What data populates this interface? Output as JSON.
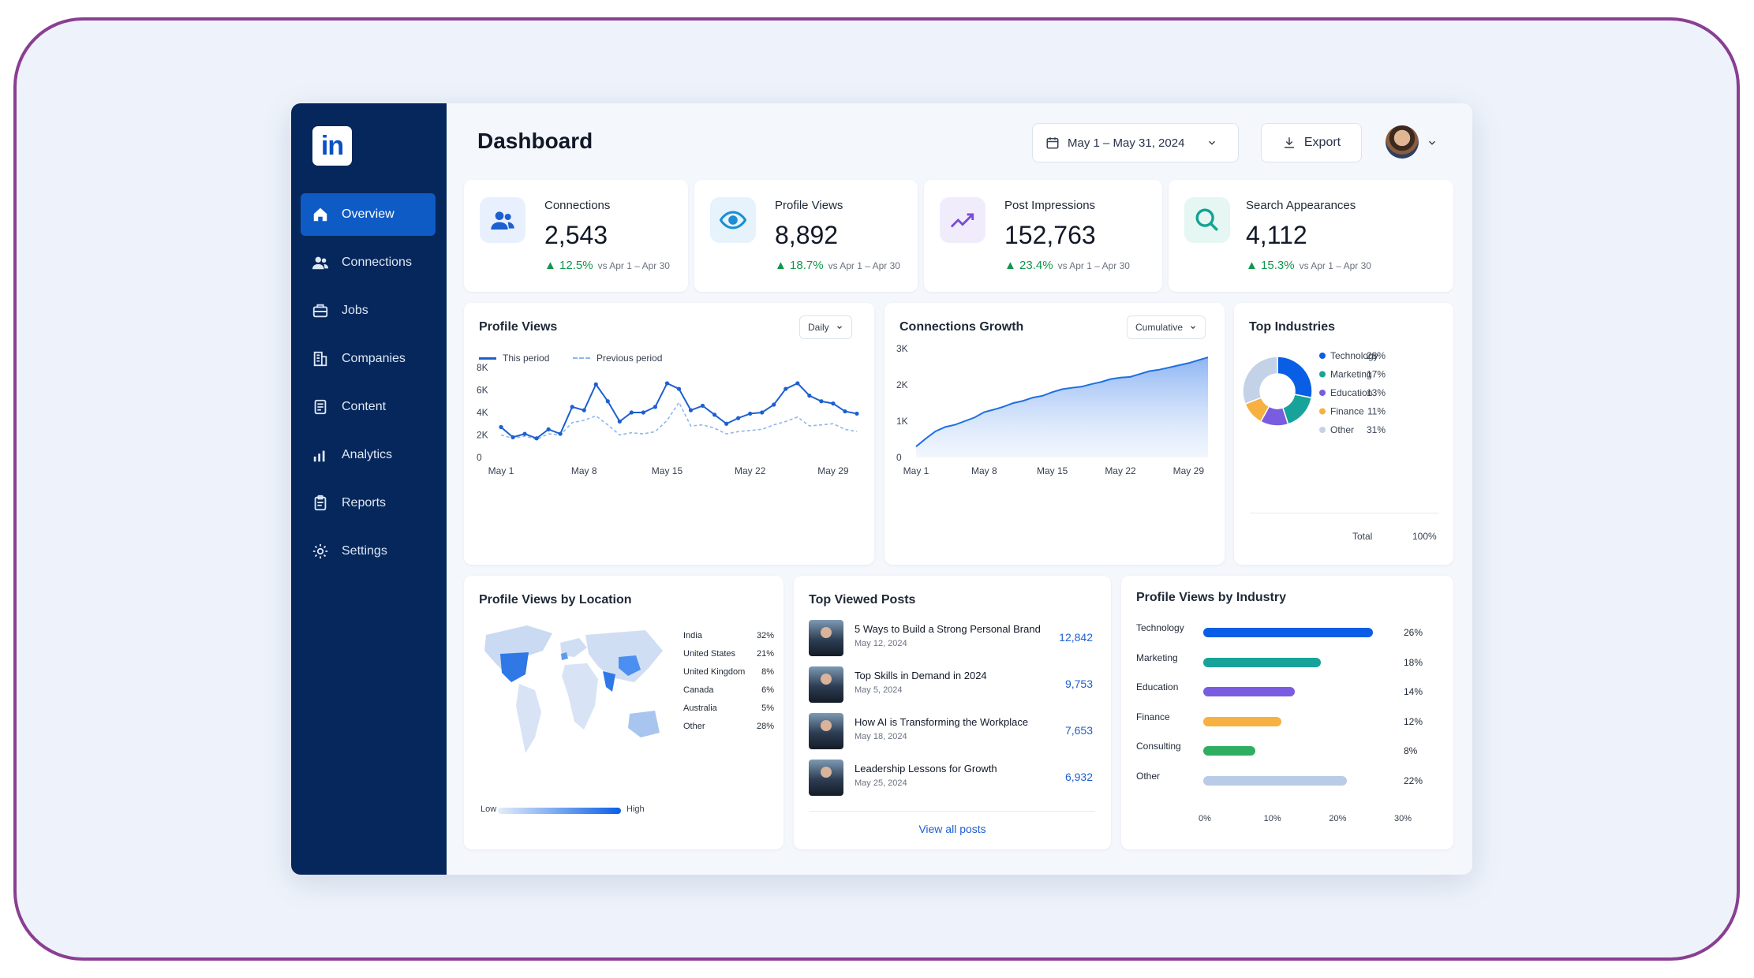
{
  "logo": "in",
  "sidebar": {
    "items": [
      {
        "label": "Overview",
        "icon": "home-icon",
        "active": true
      },
      {
        "label": "Connections",
        "icon": "users-icon"
      },
      {
        "label": "Jobs",
        "icon": "briefcase-icon"
      },
      {
        "label": "Companies",
        "icon": "building-icon"
      },
      {
        "label": "Content",
        "icon": "document-icon"
      },
      {
        "label": "Analytics",
        "icon": "bar-chart-icon"
      },
      {
        "label": "Reports",
        "icon": "clipboard-icon"
      },
      {
        "label": "Settings",
        "icon": "gear-icon"
      }
    ]
  },
  "header": {
    "title": "Dashboard",
    "date_range": "May 1 – May 31, 2024",
    "export_label": "Export"
  },
  "stats": [
    {
      "label": "Connections",
      "value": "2,543",
      "delta": "12.5%",
      "compare": "vs Apr 1 – Apr 30",
      "icon": "users-icon",
      "color": "#1d5fd1",
      "bg": "#e8f0fd"
    },
    {
      "label": "Profile Views",
      "value": "8,892",
      "delta": "18.7%",
      "compare": "vs Apr 1 – Apr 30",
      "icon": "eye-icon",
      "color": "#1d8fd1",
      "bg": "#e6f3fc"
    },
    {
      "label": "Post Impressions",
      "value": "152,763",
      "delta": "23.4%",
      "compare": "vs Apr 1 – Apr 30",
      "icon": "trend-up-icon",
      "color": "#7a4bd6",
      "bg": "#f1ecfc"
    },
    {
      "label": "Search Appearances",
      "value": "4,112",
      "delta": "15.3%",
      "compare": "vs Apr 1 – Apr 30",
      "icon": "search-icon",
      "color": "#12a392",
      "bg": "#e5f6f3"
    }
  ],
  "profile_views_chart": {
    "title": "Profile Views",
    "dropdown": "Daily",
    "legend_this": "This period",
    "legend_prev": "Previous period"
  },
  "connections_chart": {
    "title": "Connections Growth",
    "dropdown": "Cumulative"
  },
  "industries": {
    "title": "Top Industries",
    "total_label": "Total",
    "total_value": "100%"
  },
  "location": {
    "title": "Profile Views by Location",
    "rows": [
      {
        "name": "India",
        "pct": "32%"
      },
      {
        "name": "United States",
        "pct": "21%"
      },
      {
        "name": "United Kingdom",
        "pct": "8%"
      },
      {
        "name": "Canada",
        "pct": "6%"
      },
      {
        "name": "Australia",
        "pct": "5%"
      },
      {
        "name": "Other",
        "pct": "28%"
      }
    ],
    "low": "Low",
    "high": "High"
  },
  "posts": {
    "title": "Top Viewed Posts",
    "items": [
      {
        "title": "5 Ways to Build a Strong Personal Brand",
        "date": "May 12, 2024",
        "views": "12,842"
      },
      {
        "title": "Top Skills in Demand in 2024",
        "date": "May 5, 2024",
        "views": "9,753"
      },
      {
        "title": "How AI is Transforming the Workplace",
        "date": "May 18, 2024",
        "views": "7,653"
      },
      {
        "title": "Leadership Lessons for Growth",
        "date": "May 25, 2024",
        "views": "6,932"
      }
    ],
    "view_all": "View all posts"
  },
  "industry_bars": {
    "title": "Profile Views by Industry"
  },
  "chart_data": [
    {
      "type": "line",
      "title": "Profile Views",
      "x": [
        "May 1",
        "May 2",
        "May 3",
        "May 4",
        "May 5",
        "May 6",
        "May 7",
        "May 8",
        "May 9",
        "May 10",
        "May 11",
        "May 12",
        "May 13",
        "May 14",
        "May 15",
        "May 16",
        "May 17",
        "May 18",
        "May 19",
        "May 20",
        "May 21",
        "May 22",
        "May 23",
        "May 24",
        "May 25",
        "May 26",
        "May 27",
        "May 28",
        "May 29",
        "May 30",
        "May 31"
      ],
      "xticks": [
        "May 1",
        "May 8",
        "May 15",
        "May 22",
        "May 29"
      ],
      "yticks": [
        "0",
        "2K",
        "4K",
        "6K",
        "8K"
      ],
      "ylim": [
        0,
        8000
      ],
      "series": [
        {
          "name": "This period",
          "color": "#1d5fd1",
          "dashed": false,
          "values": [
            2700,
            1800,
            2100,
            1700,
            2500,
            2100,
            4500,
            4200,
            6500,
            5000,
            3200,
            4000,
            4000,
            4500,
            6600,
            6100,
            4200,
            4600,
            3800,
            3000,
            3500,
            3900,
            4000,
            4700,
            6100,
            6600,
            5500,
            5000,
            4800,
            4100,
            3900
          ]
        },
        {
          "name": "Previous period",
          "color": "#8fb6ee",
          "dashed": true,
          "values": [
            2000,
            1700,
            1900,
            1600,
            2100,
            2000,
            3100,
            3300,
            3700,
            2900,
            2000,
            2200,
            2100,
            2300,
            3300,
            4900,
            2800,
            2900,
            2600,
            2100,
            2300,
            2400,
            2500,
            2900,
            3200,
            3600,
            2800,
            2900,
            3000,
            2500,
            2300
          ]
        }
      ]
    },
    {
      "type": "area",
      "title": "Connections Growth",
      "x": [
        "May 1",
        "May 2",
        "May 3",
        "May 4",
        "May 5",
        "May 6",
        "May 7",
        "May 8",
        "May 9",
        "May 10",
        "May 11",
        "May 12",
        "May 13",
        "May 14",
        "May 15",
        "May 16",
        "May 17",
        "May 18",
        "May 19",
        "May 20",
        "May 21",
        "May 22",
        "May 23",
        "May 24",
        "May 25",
        "May 26",
        "May 27",
        "May 28",
        "May 29",
        "May 30",
        "May 31"
      ],
      "xticks": [
        "May 1",
        "May 8",
        "May 15",
        "May 22",
        "May 29"
      ],
      "yticks": [
        "0",
        "1K",
        "2K",
        "3K"
      ],
      "ylim": [
        0,
        3000
      ],
      "series": [
        {
          "name": "Connections",
          "color": "#1d6fe0",
          "values": [
            300,
            520,
            720,
            840,
            900,
            1000,
            1100,
            1250,
            1320,
            1400,
            1500,
            1560,
            1650,
            1700,
            1800,
            1880,
            1920,
            1950,
            2020,
            2080,
            2160,
            2200,
            2220,
            2300,
            2380,
            2420,
            2480,
            2540,
            2600,
            2680,
            2760
          ]
        }
      ]
    },
    {
      "type": "pie",
      "title": "Top Industries",
      "labels": [
        "Technology",
        "Marketing",
        "Education",
        "Finance",
        "Other"
      ],
      "values": [
        28,
        17,
        13,
        11,
        31
      ],
      "pcts": [
        "28%",
        "17%",
        "13%",
        "11%",
        "31%"
      ],
      "colors": [
        "#0a5ee6",
        "#17a39a",
        "#7a5ce0",
        "#f6b141",
        "#c4d2e8"
      ]
    },
    {
      "type": "bar",
      "title": "Profile Views by Industry",
      "categories": [
        "Technology",
        "Marketing",
        "Education",
        "Finance",
        "Consulting",
        "Other"
      ],
      "values": [
        26,
        18,
        14,
        12,
        8,
        22
      ],
      "pcts": [
        "26%",
        "18%",
        "14%",
        "12%",
        "8%",
        "22%"
      ],
      "colors": [
        "#0a5ee6",
        "#17a39a",
        "#7a5ce0",
        "#f6b141",
        "#2fae61",
        "#b9cbe6"
      ],
      "xticks": [
        "0%",
        "10%",
        "20%",
        "30%"
      ],
      "xlim": [
        0,
        30
      ]
    }
  ]
}
